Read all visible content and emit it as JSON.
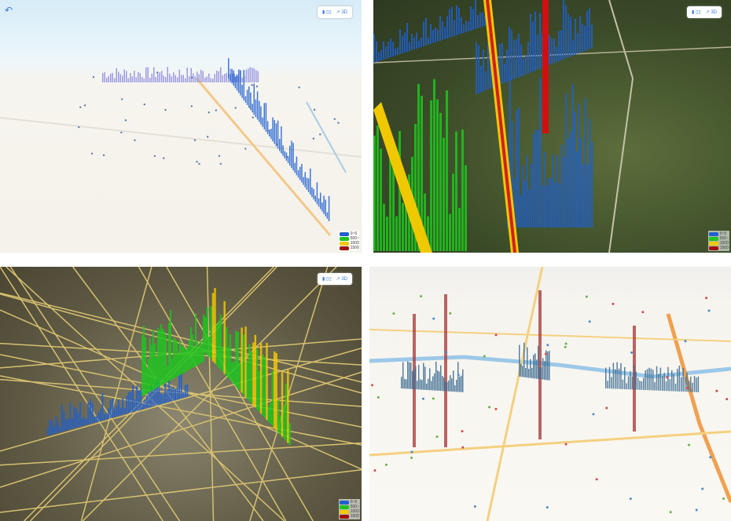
{
  "controls": {
    "mode_2d": "▮ ▯▯",
    "mode_3d": "↗ 3D"
  },
  "legend": [
    {
      "label": "0~5",
      "color": "#1f5fd0"
    },
    {
      "label": "500~",
      "color": "#1ec41e"
    },
    {
      "label": "1000",
      "color": "#f0c800"
    },
    {
      "label": "1500",
      "color": "#a01010"
    }
  ],
  "back_icon": "↶"
}
